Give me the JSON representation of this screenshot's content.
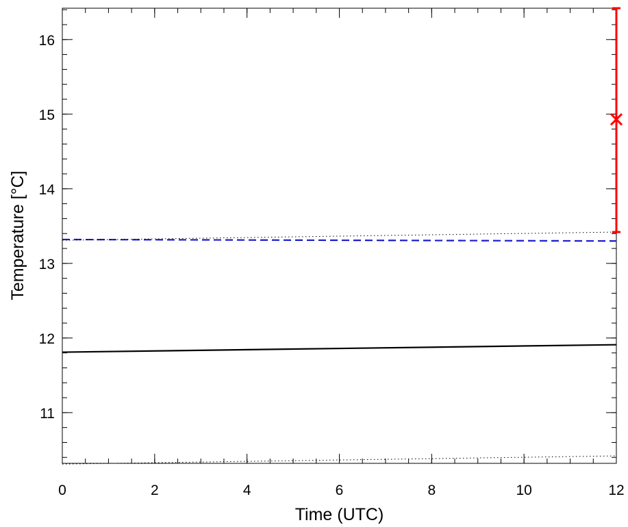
{
  "chart_data": {
    "type": "line",
    "title": "",
    "xlabel": "Time (UTC)",
    "ylabel": "Temperature [°C]",
    "xlim": [
      0,
      12
    ],
    "ylim": [
      10.32,
      16.42
    ],
    "xticks": [
      0,
      2,
      4,
      6,
      8,
      10,
      12
    ],
    "yticks": [
      11,
      12,
      13,
      14,
      15,
      16
    ],
    "x_minor_step": 0.5,
    "y_minor_step": 0.2,
    "grid": false,
    "legend": "none",
    "series": [
      {
        "style": "solid",
        "color": "#000000",
        "x": [
          0,
          12
        ],
        "y": [
          11.81,
          11.91
        ]
      },
      {
        "style": "dashed",
        "color": "#1a1acc",
        "x": [
          0,
          12
        ],
        "y": [
          13.32,
          13.3
        ]
      },
      {
        "style": "dotted",
        "color": "#000000",
        "x": [
          0,
          12
        ],
        "y": [
          13.31,
          13.42
        ]
      },
      {
        "style": "dotted",
        "color": "#000000",
        "x": [
          0,
          12
        ],
        "y": [
          10.31,
          10.42
        ]
      }
    ],
    "observation": {
      "color": "#ff0000",
      "x": 12,
      "y": 14.93,
      "y_low": 13.42,
      "y_high": 16.42
    }
  }
}
